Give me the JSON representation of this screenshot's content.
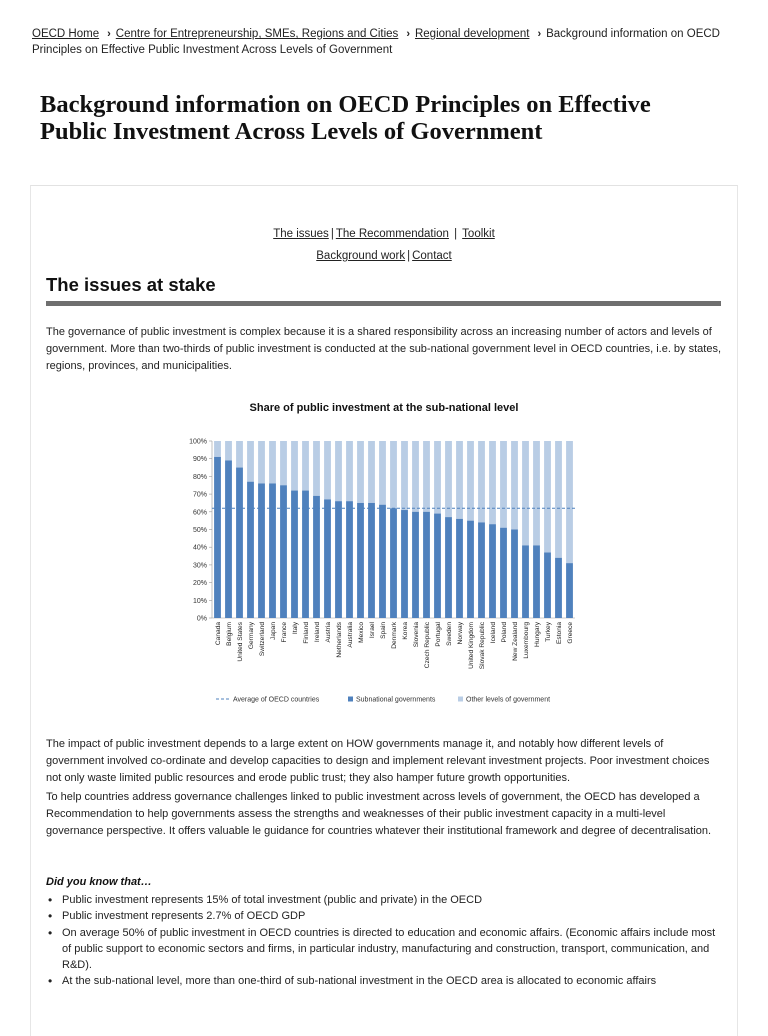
{
  "breadcrumb": {
    "home": "OECD Home",
    "centre": "Centre for Entrepreneurship, SMEs, Regions and Cities",
    "regional": "Regional development",
    "current": "Background information on OECD Principles on Effective Public Investment Across Levels of Government"
  },
  "page_title": "Background information on OECD Principles on Effective Public Investment Across Levels of Government",
  "nav": {
    "issues": "The issues",
    "recommendation": "The Recommendation",
    "toolkit": "Toolkit",
    "background": "Background work",
    "contact": "Contact",
    "separator": "|"
  },
  "section_heading": "The issues at stake",
  "intro": "The governance of public investment is complex because it is a shared responsibility across an increasing number of actors and levels of government. More than two-thirds of public investment is conducted at the sub-national government level in OECD countries, i.e. by states, regions, provinces, and municipalities.",
  "chart_data": {
    "type": "bar",
    "title": "Share of public investment at the sub-national level",
    "xlabel": "",
    "ylabel": "",
    "ylim": [
      0,
      100
    ],
    "yticks": [
      "0%",
      "10%",
      "20%",
      "30%",
      "40%",
      "50%",
      "60%",
      "70%",
      "80%",
      "90%",
      "100%"
    ],
    "categories": [
      "Canada",
      "Belgium",
      "United States",
      "Germany",
      "Switzerland",
      "Japan",
      "France",
      "Italy",
      "Finland",
      "Ireland",
      "Austria",
      "Netherlands",
      "Australia",
      "Mexico",
      "Israel",
      "Spain",
      "Denmark",
      "Korea",
      "Slovenia",
      "Czech Republic",
      "Portugal",
      "Sweden",
      "Norway",
      "United Kingdom",
      "Slovak Republic",
      "Iceland",
      "Poland",
      "New Zealand",
      "Luxembourg",
      "Hungary",
      "Turkey",
      "Estonia",
      "Greece"
    ],
    "series": [
      {
        "name": "Subnational governments",
        "color": "#4f81bd",
        "values": [
          91,
          89,
          85,
          77,
          76,
          76,
          75,
          72,
          72,
          69,
          67,
          66,
          66,
          65,
          65,
          64,
          62,
          61,
          60,
          60,
          59,
          57,
          56,
          55,
          54,
          53,
          51,
          50,
          41,
          41,
          37,
          34,
          31
        ]
      },
      {
        "name": "Other levels of government",
        "color": "#b9cde5",
        "values": [
          9,
          11,
          15,
          23,
          24,
          24,
          25,
          28,
          28,
          31,
          33,
          34,
          34,
          35,
          35,
          36,
          38,
          39,
          40,
          40,
          41,
          43,
          44,
          45,
          46,
          47,
          49,
          50,
          59,
          59,
          63,
          66,
          69
        ]
      }
    ],
    "average": {
      "name": "Average of OECD countries",
      "value": 62,
      "color": "#4f81bd"
    },
    "legend_position": "bottom",
    "stacked": true
  },
  "paragraphs": {
    "impact": "The impact of public investment depends to a large extent on HOW governments manage it, and notably how different levels of government involved co-ordinate and develop capacities to design and implement relevant investment projects. Poor investment choices not only waste limited public resources and erode public trust; they also hamper future growth opportunities.",
    "help": "To help countries address governance challenges linked to public investment across levels of government, the OECD has developed a Recommendation to help governments assess the strengths and weaknesses of their public investment capacity in a multi-level governance perspective.  It offers valuable le guidance for countries whatever their institutional framework and degree of decentralisation."
  },
  "did_you_know": {
    "heading": "Did you know that…",
    "items": [
      "Public investment represents 15% of total investment (public and private) in the OECD",
      "Public investment represents 2.7% of OECD GDP",
      "On average 50% of public investment in OECD countries is directed to education and economic affairs. (Economic affairs include most of public support to economic sectors and firms, in particular industry, manufacturing and construction, transport, communication, and R&D).",
      "At the sub-national level, more than one-third of sub-national investment in the OECD area is allocated to economic affairs"
    ]
  }
}
